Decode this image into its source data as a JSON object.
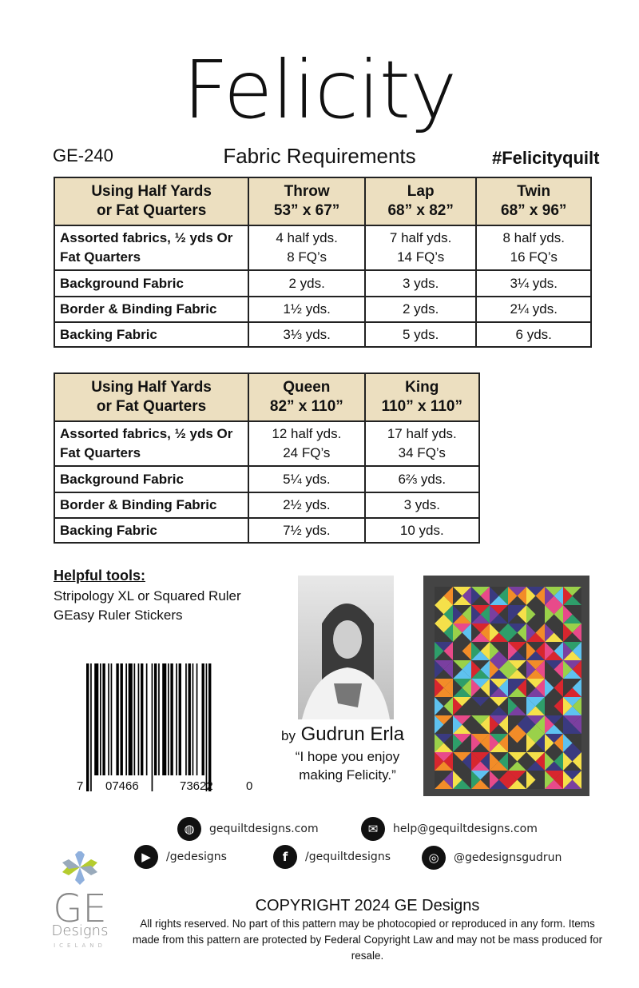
{
  "title": "Felicity",
  "code": "GE-240",
  "subtitle": "Fabric Requirements",
  "hashtag": "#Felicityquilt",
  "table1": {
    "header": [
      "Using Half Yards\nor Fat Quarters",
      "Throw\n53” x 67”",
      "Lap\n68” x 82”",
      "Twin\n68” x 96”"
    ],
    "rows": [
      [
        "Assorted fabrics, ½ yds Or\nFat Quarters",
        "4 half yds.\n8 FQ’s",
        "7 half yds.\n14 FQ’s",
        "8 half yds.\n16 FQ’s"
      ],
      [
        "Background Fabric",
        "2 yds.",
        "3 yds.",
        "3¼ yds."
      ],
      [
        "Border & Binding Fabric",
        "1½ yds.",
        "2 yds.",
        "2¼ yds."
      ],
      [
        "Backing Fabric",
        "3⅓ yds.",
        "5 yds.",
        "6 yds."
      ]
    ]
  },
  "table2": {
    "header": [
      "Using Half Yards\nor Fat Quarters",
      "Queen\n82” x 110”",
      "King\n110” x 110”"
    ],
    "rows": [
      [
        "Assorted fabrics, ½ yds Or\nFat Quarters",
        "12 half yds.\n24 FQ’s",
        "17 half yds.\n34 FQ’s"
      ],
      [
        "Background Fabric",
        "5¼ yds.",
        "6⅔ yds."
      ],
      [
        "Border & Binding Fabric",
        "2½ yds.",
        "3 yds."
      ],
      [
        "Backing Fabric",
        "7½ yds.",
        "10 yds."
      ]
    ]
  },
  "tools": {
    "heading": "Helpful tools:",
    "items": [
      "Stripology XL or Squared Ruler",
      "GEasy Ruler Stickers"
    ]
  },
  "barcode": {
    "digits": [
      "7",
      "07466",
      "73622",
      "0"
    ]
  },
  "author": {
    "by": "by",
    "name": "Gudrun Erla",
    "quote": "“I hope you enjoy making Felicity.”"
  },
  "contacts": {
    "website": "gequiltdesigns.com",
    "email": "help@gequiltdesigns.com",
    "youtube": "/gedesigns",
    "facebook": "/gequiltdesigns",
    "instagram": "@gedesignsgudrun"
  },
  "logo": {
    "text": "GE Designs Iceland"
  },
  "copyright": "COPYRIGHT 2024  GE Designs",
  "rights": "All rights reserved. No part of this pattern may be photocopied or reproduced in any form. Items made from this pattern are protected by Federal Copyright Law and may not be mass produced for resale.",
  "colors": {
    "header_bg": "#ecdfc0",
    "quilt_bg": "#444444"
  }
}
